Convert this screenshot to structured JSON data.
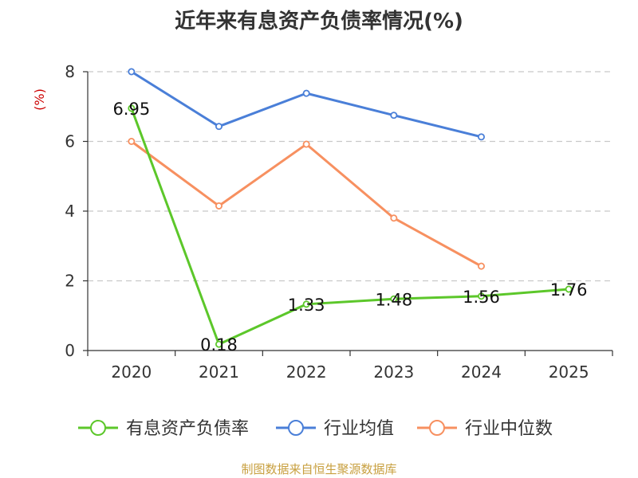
{
  "chart_data": {
    "type": "line",
    "title": "近年来有息资产负债率情况(%)",
    "ylabel": "(%)",
    "x": [
      "2020",
      "2021",
      "2022",
      "2023",
      "2024",
      "2025"
    ],
    "ylim": [
      0,
      8
    ],
    "yticks": [
      0,
      2,
      4,
      6,
      8
    ],
    "grid": true,
    "legend_position": "bottom",
    "series": [
      {
        "name": "有息资产负债率",
        "color": "#5cc72a",
        "values": [
          6.95,
          0.18,
          1.33,
          1.48,
          1.56,
          1.76
        ],
        "labels": [
          "6.95",
          "0.18",
          "1.33",
          "1.48",
          "1.56",
          "1.76"
        ]
      },
      {
        "name": "行业均值",
        "color": "#4a7fd8",
        "values": [
          8.0,
          6.43,
          7.38,
          6.75,
          6.13,
          null
        ]
      },
      {
        "name": "行业中位数",
        "color": "#f79060",
        "values": [
          6.0,
          4.15,
          5.92,
          3.8,
          2.42,
          null
        ]
      }
    ]
  },
  "source": "制图数据来自恒生聚源数据库"
}
